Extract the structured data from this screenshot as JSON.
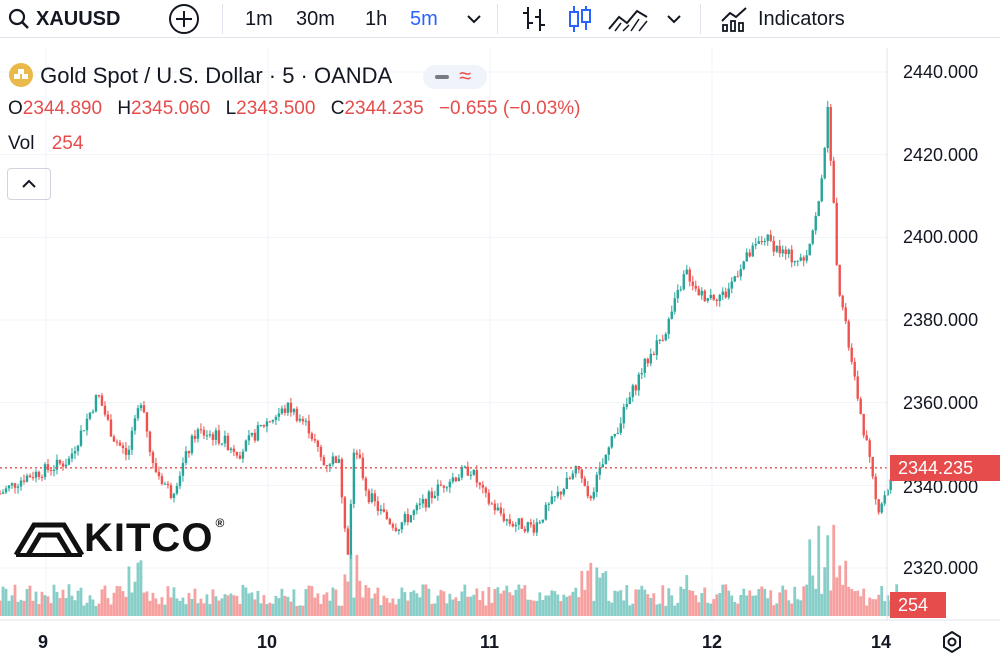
{
  "toolbar": {
    "symbol": "XAUUSD",
    "intervals": [
      "1m",
      "30m",
      "1h",
      "5m"
    ],
    "active_interval": "5m",
    "indicators_label": "Indicators"
  },
  "legend": {
    "title": "Gold Spot / U.S. Dollar · 5 · OANDA",
    "open_label": "O",
    "open": "2344.890",
    "high_label": "H",
    "high": "2345.060",
    "low_label": "L",
    "low": "2343.500",
    "close_label": "C",
    "close": "2344.235",
    "change": "−0.655 (−0.03%)",
    "vol_label": "Vol",
    "vol": "254"
  },
  "logo_text": "KITCO",
  "colors": {
    "up": "#26a69a",
    "down": "#ef5350",
    "accent": "#2962ff",
    "price_line": "#e74c4c"
  },
  "chart_data": {
    "type": "candlestick",
    "ylim": [
      2308,
      2446
    ],
    "y_ticks": [
      "2440.000",
      "2420.000",
      "2400.000",
      "2380.000",
      "2360.000",
      "2340.000",
      "2320.000"
    ],
    "x_ticks": [
      "9",
      "10",
      "11",
      "12",
      "14"
    ],
    "current_price": "2344.235",
    "current_volume": "254",
    "grid": true,
    "price_path": [
      {
        "x": 0.0,
        "y": 2338
      },
      {
        "x": 0.25,
        "y": 2342
      },
      {
        "x": 0.5,
        "y": 2344
      },
      {
        "x": 0.7,
        "y": 2346
      },
      {
        "x": 1.0,
        "y": 2362
      },
      {
        "x": 1.15,
        "y": 2352
      },
      {
        "x": 1.3,
        "y": 2347
      },
      {
        "x": 1.45,
        "y": 2362
      },
      {
        "x": 1.55,
        "y": 2345
      },
      {
        "x": 1.75,
        "y": 2338
      },
      {
        "x": 2.0,
        "y": 2353
      },
      {
        "x": 2.2,
        "y": 2352
      },
      {
        "x": 2.45,
        "y": 2348
      },
      {
        "x": 2.7,
        "y": 2355
      },
      {
        "x": 2.95,
        "y": 2359
      },
      {
        "x": 3.15,
        "y": 2354
      },
      {
        "x": 3.3,
        "y": 2345
      },
      {
        "x": 3.45,
        "y": 2347
      },
      {
        "x": 3.55,
        "y": 2324
      },
      {
        "x": 3.62,
        "y": 2350
      },
      {
        "x": 3.75,
        "y": 2338
      },
      {
        "x": 3.9,
        "y": 2333
      },
      {
        "x": 4.05,
        "y": 2330
      },
      {
        "x": 4.25,
        "y": 2334
      },
      {
        "x": 4.55,
        "y": 2341
      },
      {
        "x": 4.8,
        "y": 2344
      },
      {
        "x": 4.95,
        "y": 2337
      },
      {
        "x": 5.2,
        "y": 2331
      },
      {
        "x": 5.45,
        "y": 2330
      },
      {
        "x": 5.7,
        "y": 2338
      },
      {
        "x": 5.9,
        "y": 2344
      },
      {
        "x": 6.0,
        "y": 2336
      },
      {
        "x": 6.3,
        "y": 2354
      },
      {
        "x": 6.55,
        "y": 2368
      },
      {
        "x": 6.8,
        "y": 2378
      },
      {
        "x": 7.0,
        "y": 2392
      },
      {
        "x": 7.15,
        "y": 2386
      },
      {
        "x": 7.4,
        "y": 2386
      },
      {
        "x": 7.55,
        "y": 2393
      },
      {
        "x": 7.8,
        "y": 2400
      },
      {
        "x": 8.0,
        "y": 2396
      },
      {
        "x": 8.2,
        "y": 2394
      },
      {
        "x": 8.35,
        "y": 2407
      },
      {
        "x": 8.45,
        "y": 2431
      },
      {
        "x": 8.55,
        "y": 2390
      },
      {
        "x": 8.7,
        "y": 2368
      },
      {
        "x": 8.85,
        "y": 2349
      },
      {
        "x": 8.95,
        "y": 2334
      },
      {
        "x": 9.15,
        "y": 2344
      }
    ]
  }
}
